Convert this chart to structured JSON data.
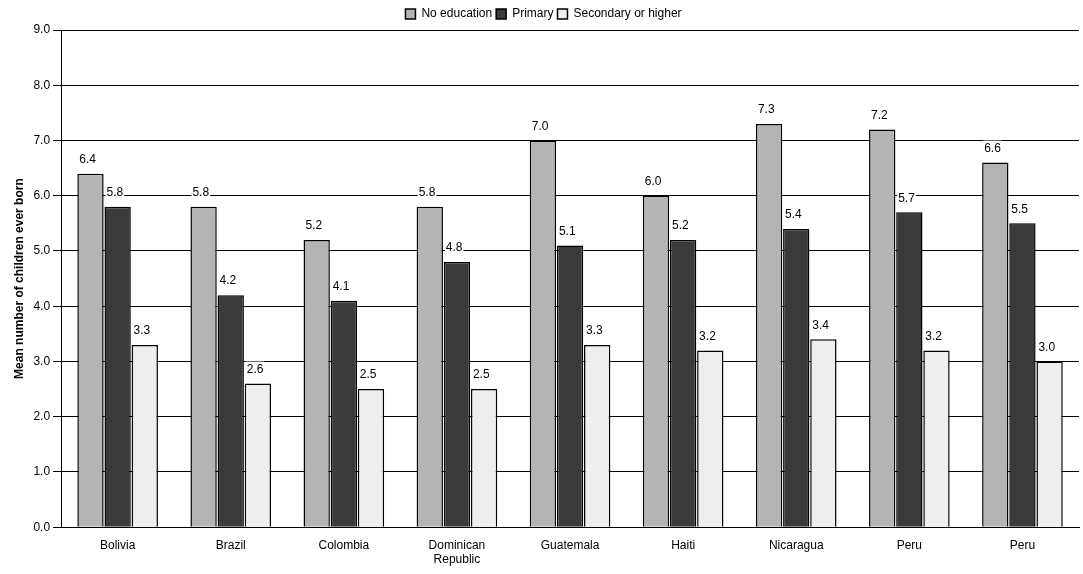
{
  "chart_data": {
    "type": "bar",
    "ylabel": "Mean number of children ever born",
    "categories": [
      "Bolivia",
      "Brazil",
      "Colombia",
      "Dominican Republic",
      "Guatemala",
      "Haiti",
      "Nicaragua",
      "Peru",
      "Peru"
    ],
    "series": [
      {
        "name": "No education",
        "color": "#b4b4b4",
        "values": [
          6.4,
          5.8,
          5.2,
          5.8,
          7.0,
          6.0,
          7.3,
          7.2,
          6.6
        ],
        "value_labels": [
          "6.4",
          "5.8",
          "5.2",
          "5.8",
          "7.0",
          "6.0",
          "7.3",
          "7.2",
          "6.6"
        ]
      },
      {
        "name": "Primary",
        "color": "#3a3a3a",
        "values": [
          5.8,
          4.2,
          4.1,
          4.8,
          5.1,
          5.2,
          5.4,
          5.7,
          5.5
        ],
        "value_labels": [
          "5.8",
          "4.2",
          "4.1",
          "4.8",
          "5.1",
          "5.2",
          "5.4",
          "5.7",
          "5.5"
        ]
      },
      {
        "name": "Secondary or higher",
        "color": "#eeeeee",
        "values": [
          3.3,
          2.6,
          2.5,
          2.5,
          3.3,
          3.2,
          3.4,
          3.2,
          3.0
        ],
        "value_labels": [
          "3.3",
          "2.6",
          "2.5",
          "2.5",
          "3.3",
          "3.2",
          "3.4",
          "3.2",
          "3.0"
        ]
      }
    ],
    "ylim": [
      0,
      9
    ],
    "yticks": [
      {
        "value": 0,
        "label": "0.0"
      },
      {
        "value": 1,
        "label": "1.0"
      },
      {
        "value": 2,
        "label": "2.0"
      },
      {
        "value": 3,
        "label": "3.0"
      },
      {
        "value": 4,
        "label": "4.0"
      },
      {
        "value": 5,
        "label": "5.0"
      },
      {
        "value": 6,
        "label": "6.0"
      },
      {
        "value": 7,
        "label": "7.0"
      },
      {
        "value": 8,
        "label": "8.0"
      },
      {
        "value": 9,
        "label": "9.0"
      }
    ],
    "grid": "y",
    "legend": "top"
  }
}
